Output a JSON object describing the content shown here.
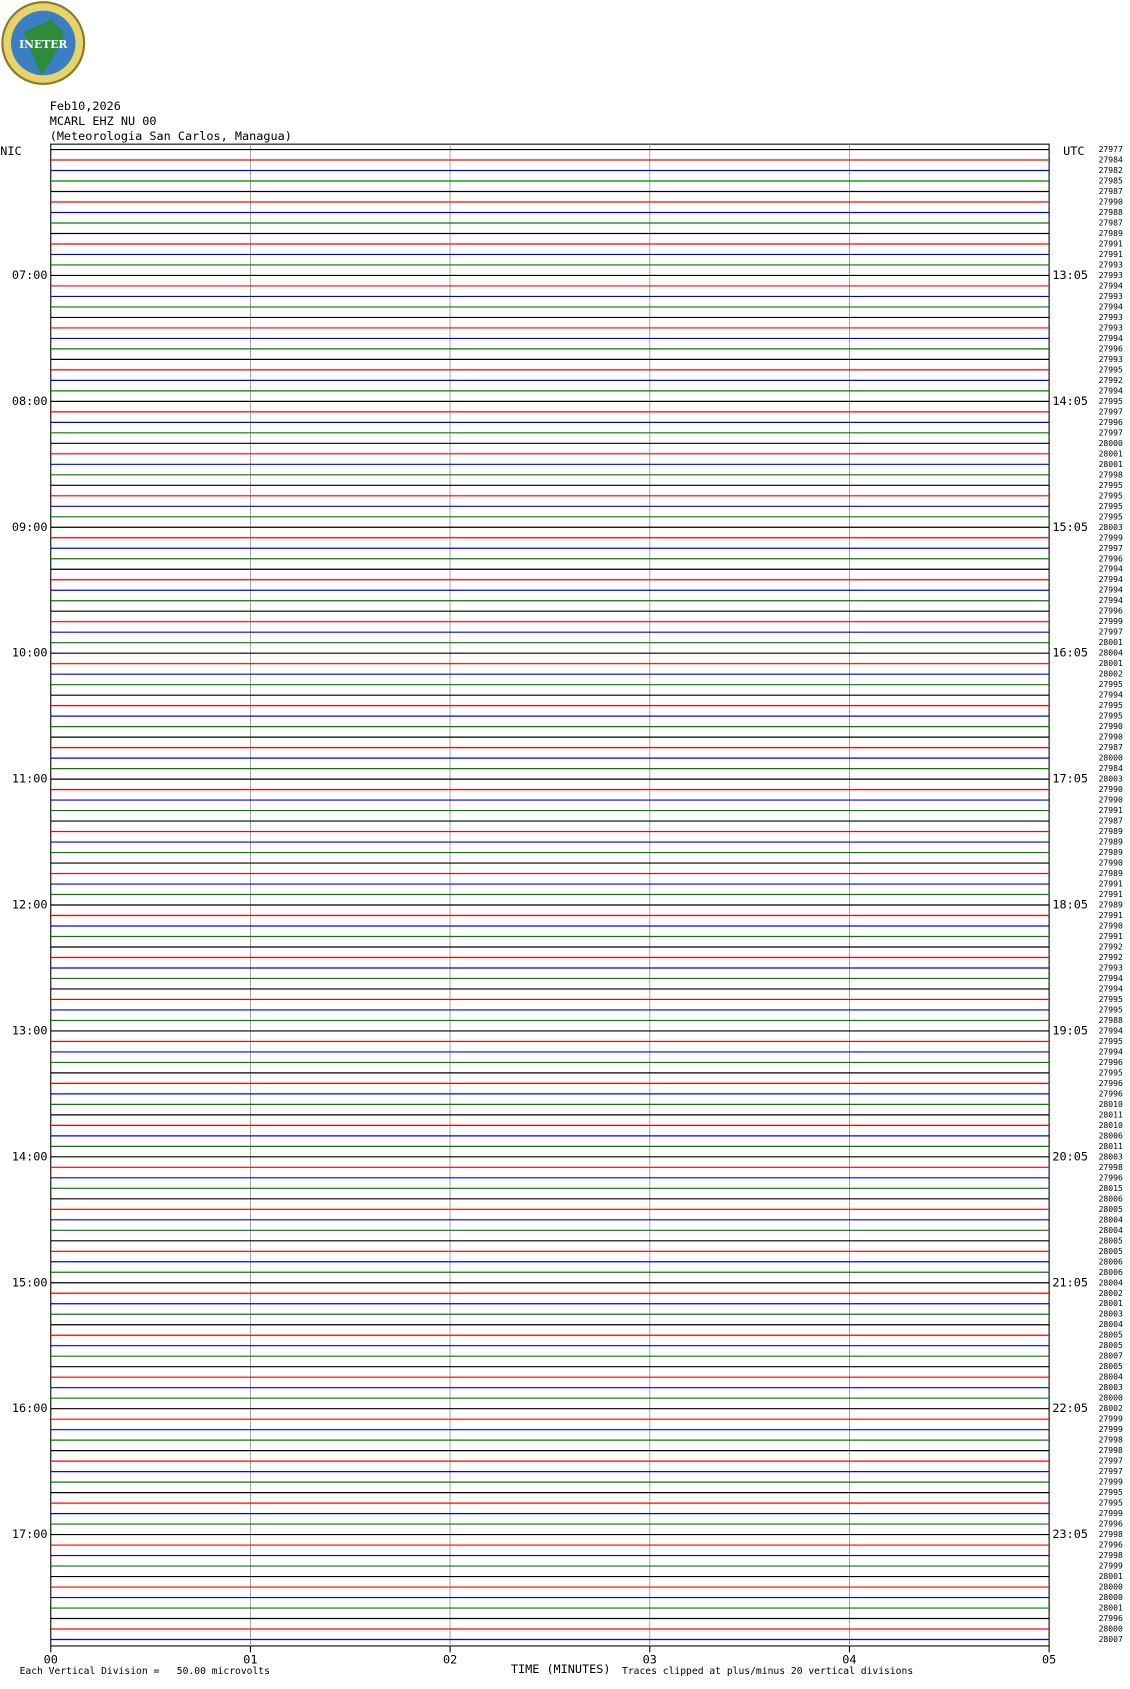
{
  "header": {
    "logo": "INETER",
    "date": "Feb10,2026",
    "station": "MCARL EHZ NU 00",
    "location": "(Meteorologia San Carlos, Managua)",
    "left_zone": "NIC",
    "right_zone": "UTC"
  },
  "traces": {
    "colors": [
      "#000000",
      "#ff0000",
      "#0000ff",
      "#007f00"
    ],
    "counts": [
      27977,
      27984,
      27982,
      27985,
      27987,
      27990,
      27988,
      27987,
      27989,
      27991,
      27991,
      27993,
      27993,
      27994,
      27993,
      27994,
      27993,
      27993,
      27994,
      27996,
      27993,
      27995,
      27992,
      27994,
      27995,
      27997,
      27996,
      27997,
      28000,
      28001,
      28001,
      27998,
      27995,
      27995,
      27995,
      27995,
      28003,
      27999,
      27997,
      27996,
      27994,
      27994,
      27994,
      27994,
      27996,
      27999,
      27997,
      28001,
      28004,
      28001,
      28002,
      27995,
      27994,
      27995,
      27995,
      27990,
      27990,
      27987,
      28000,
      27984,
      28003,
      27990,
      27990,
      27991,
      27987,
      27989,
      27989,
      27989,
      27990,
      27989,
      27991,
      27991,
      27989,
      27991,
      27990,
      27991,
      27992,
      27992,
      27993,
      27994,
      27994,
      27995,
      27995,
      27988,
      27994,
      27995,
      27994,
      27996,
      27995,
      27996,
      27996,
      28010,
      28011,
      28010,
      28006,
      28011,
      28003,
      27998,
      27996,
      28015,
      28006,
      28005,
      28004,
      28004,
      28005,
      28005,
      28006,
      28006,
      28004,
      28002,
      28001,
      28003,
      28004,
      28005,
      28005,
      28007,
      28005,
      28004,
      28003,
      28000,
      28002,
      27999,
      27999,
      27998,
      27998,
      27997,
      27997,
      27999,
      27995,
      27995,
      27999,
      27996,
      27998,
      27996,
      27998,
      27999,
      28001,
      28000,
      28000,
      28001,
      27996,
      28000,
      28007
    ],
    "left_labels": [
      "07:00",
      "08:00",
      "09:00",
      "10:00",
      "11:00",
      "12:00",
      "13:00",
      "14:00",
      "15:00",
      "16:00",
      "17:00"
    ],
    "right_labels": [
      "13:05",
      "14:05",
      "15:05",
      "16:05",
      "17:05",
      "18:05",
      "19:05",
      "20:05",
      "21:05",
      "22:05",
      "23:05"
    ]
  },
  "x_axis": {
    "title": "TIME (MINUTES)",
    "ticks": [
      "00",
      "01",
      "02",
      "03",
      "04",
      "05"
    ]
  },
  "footer": {
    "scale_note": "Each Vertical Division =   50.00 microvolts",
    "clip_note": "Traces clipped at plus/minus 20 vertical divisions"
  }
}
